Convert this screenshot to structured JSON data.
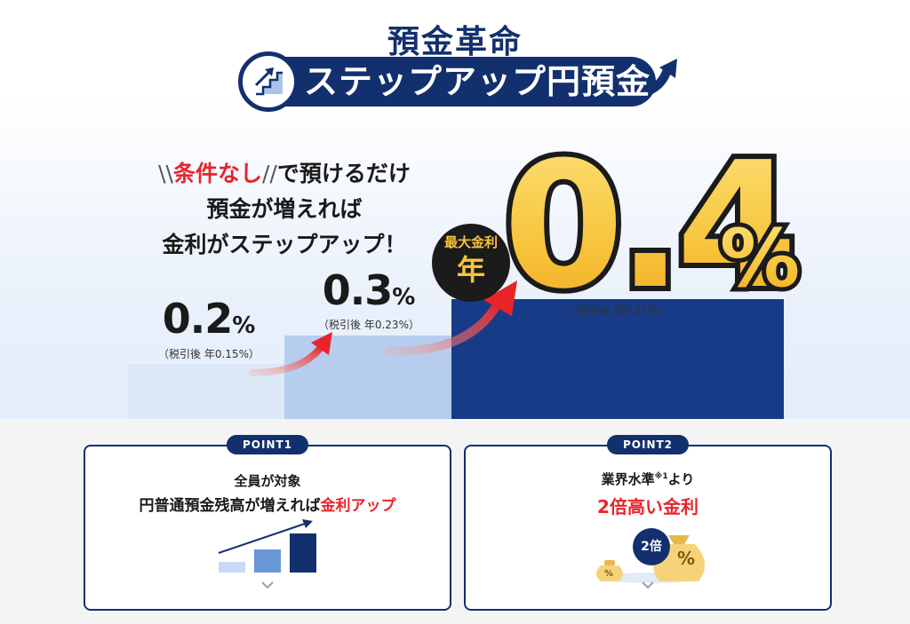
{
  "header": {
    "title_top": "預金革命",
    "title_banner": "ステップアップ円預金"
  },
  "catch": {
    "line1_prefix": "\\\\",
    "line1_red": "条件なし",
    "line1_slash": "//",
    "line1_rest": "で預けるだけ",
    "line2": "預金が増えれば",
    "line3": "金利がステップアップ！"
  },
  "steps": [
    {
      "rate": "0.2",
      "unit": "%",
      "after_tax": "（税引後 年0.15%）"
    },
    {
      "rate": "0.3",
      "unit": "%",
      "after_tax": "（税引後 年0.23%）"
    },
    {
      "rate": "0.4",
      "unit": "%",
      "after_tax": "（税引後 年0.31%）"
    }
  ],
  "max_badge": {
    "line1": "最大金利",
    "line2": "年"
  },
  "points": [
    {
      "tag": "POINT1",
      "line1": "全員が対象",
      "line2_prefix": "円普通預金残高が増えれば",
      "line2_red": "金利アップ"
    },
    {
      "tag": "POINT2",
      "line1": "業界水準",
      "line1_sup": "※1",
      "line1_suffix": "より",
      "line2_red": "2倍高い金利",
      "badge": "2倍",
      "bag_symbol": "%"
    }
  ],
  "icons": {
    "banner": "stairs-arrow-icon",
    "card_toggle": "chevron-down-icon"
  },
  "colors": {
    "navy": "#13306e",
    "red": "#e8242b",
    "gold": "#f7c43c"
  }
}
